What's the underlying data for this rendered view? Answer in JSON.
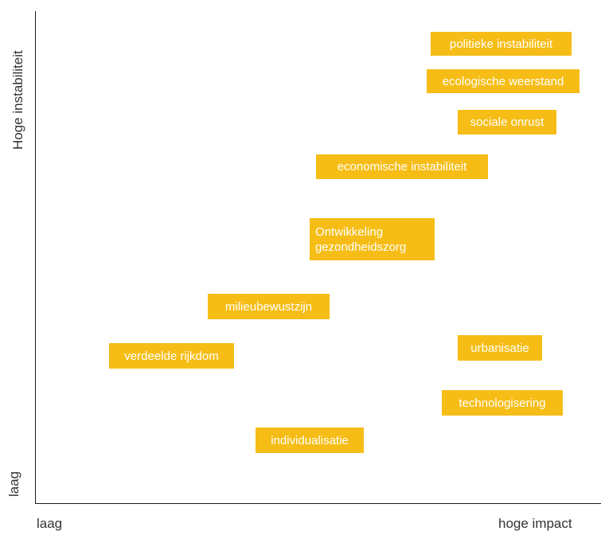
{
  "axes": {
    "y_high": "Hoge  instabiliteit",
    "y_low": "laag",
    "x_low": "laag",
    "x_high": "hoge  impact"
  },
  "colors": {
    "box_fill": "#f6bd16",
    "box_text": "#ffffff",
    "axis": "#1a1a1a"
  },
  "items": [
    {
      "id": "politieke-instabiliteit",
      "label": "politieke instabiliteit"
    },
    {
      "id": "ecologische-weerstand",
      "label": "ecologische weerstand"
    },
    {
      "id": "sociale-onrust",
      "label": "sociale onrust"
    },
    {
      "id": "economische-instabiliteit",
      "label": "economische instabiliteit"
    },
    {
      "id": "ontwikkeling-gezondheidszorg",
      "label": "Ontwikkeling\ngezondheidszorg"
    },
    {
      "id": "milieubewustzijn",
      "label": "milieubewustzijn"
    },
    {
      "id": "verdeelde-rijkdom",
      "label": "verdeelde rijkdom"
    },
    {
      "id": "urbanisatie",
      "label": "urbanisatie"
    },
    {
      "id": "technologisering",
      "label": "technologisering"
    },
    {
      "id": "individualisatie",
      "label": "individualisatie"
    }
  ]
}
